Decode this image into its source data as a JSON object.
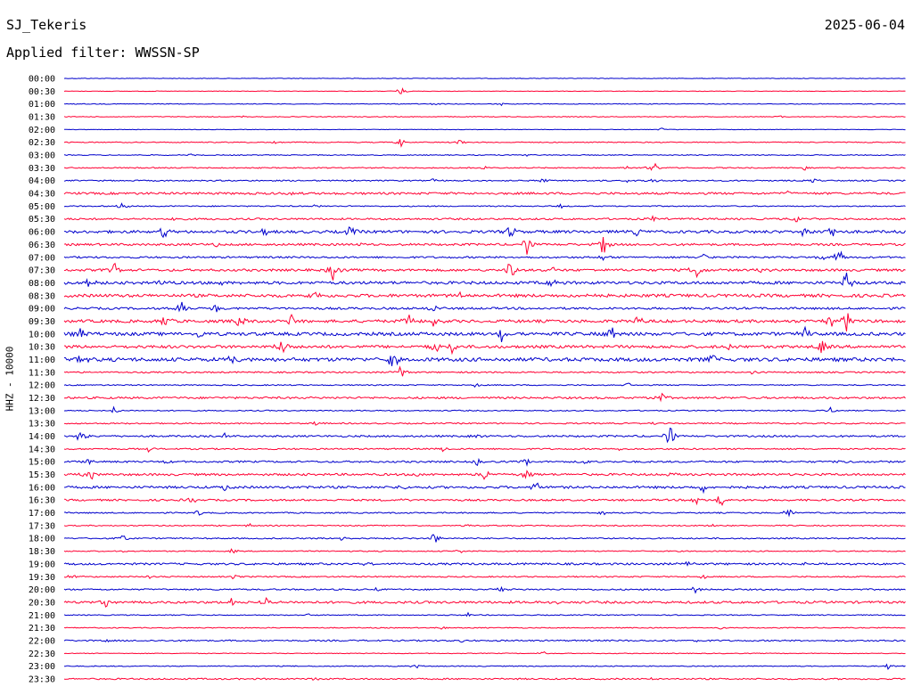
{
  "header": {
    "station": "SJ_Tekeris",
    "date": "2025-06-04",
    "filter_text": "Applied filter: WWSSN-SP"
  },
  "chart_data": {
    "type": "helicorder",
    "title": "SJ_Tekeris",
    "date": "2025-06-04",
    "filter": "Applied filter: WWSSN-SP",
    "ylabel": "HHZ - 10000",
    "line_interval_minutes": 30,
    "colors": [
      "#0000cc",
      "#ff0033"
    ],
    "grid": false,
    "legend": "none",
    "traces": [
      {
        "time": "00:00",
        "noise": 0.3,
        "events": []
      },
      {
        "time": "00:30",
        "noise": 0.3,
        "events": [
          [
            0.4,
            3
          ]
        ]
      },
      {
        "time": "01:00",
        "noise": 0.4,
        "events": [
          [
            0.44,
            1.2
          ],
          [
            0.52,
            1
          ]
        ]
      },
      {
        "time": "01:30",
        "noise": 0.4,
        "events": [
          [
            0.21,
            1
          ],
          [
            0.85,
            1
          ]
        ]
      },
      {
        "time": "02:00",
        "noise": 0.3,
        "events": [
          [
            0.71,
            1.5
          ]
        ]
      },
      {
        "time": "02:30",
        "noise": 0.5,
        "events": [
          [
            0.4,
            4
          ],
          [
            0.47,
            2.5
          ],
          [
            0.25,
            1
          ]
        ]
      },
      {
        "time": "03:00",
        "noise": 0.5,
        "events": [
          [
            0.15,
            1
          ],
          [
            0.55,
            1
          ]
        ]
      },
      {
        "time": "03:30",
        "noise": 0.6,
        "events": [
          [
            0.5,
            1.5
          ],
          [
            0.7,
            6
          ],
          [
            0.67,
            1.5
          ],
          [
            0.88,
            2
          ]
        ]
      },
      {
        "time": "04:00",
        "noise": 0.7,
        "events": [
          [
            0.44,
            2
          ],
          [
            0.57,
            2
          ],
          [
            0.67,
            1.5
          ],
          [
            0.7,
            2
          ],
          [
            0.89,
            1.5
          ]
        ]
      },
      {
        "time": "04:30",
        "noise": 1.2,
        "events": [
          [
            0.27,
            1.5
          ],
          [
            0.86,
            1.5
          ]
        ]
      },
      {
        "time": "05:00",
        "noise": 0.6,
        "events": [
          [
            0.07,
            3
          ],
          [
            0.3,
            1.5
          ],
          [
            0.59,
            1.5
          ]
        ]
      },
      {
        "time": "05:30",
        "noise": 1.0,
        "events": [
          [
            0.13,
            2
          ],
          [
            0.5,
            1.5
          ],
          [
            0.7,
            2.5
          ],
          [
            0.87,
            3
          ]
        ]
      },
      {
        "time": "06:00",
        "noise": 1.5,
        "events": [
          [
            0.12,
            7
          ],
          [
            0.24,
            5
          ],
          [
            0.34,
            6
          ],
          [
            0.53,
            6
          ],
          [
            0.68,
            4
          ],
          [
            0.88,
            5
          ],
          [
            0.91,
            9
          ]
        ]
      },
      {
        "time": "06:30",
        "noise": 1.2,
        "events": [
          [
            0.18,
            2
          ],
          [
            0.35,
            2
          ],
          [
            0.55,
            7
          ],
          [
            0.64,
            9
          ]
        ]
      },
      {
        "time": "07:00",
        "noise": 1.0,
        "events": [
          [
            0.64,
            4
          ],
          [
            0.76,
            3
          ],
          [
            0.9,
            5
          ],
          [
            0.92,
            9
          ]
        ]
      },
      {
        "time": "07:30",
        "noise": 1.3,
        "events": [
          [
            0.06,
            5
          ],
          [
            0.32,
            8
          ],
          [
            0.53,
            8
          ],
          [
            0.58,
            2
          ],
          [
            0.75,
            9
          ],
          [
            0.83,
            2
          ]
        ]
      },
      {
        "time": "08:00",
        "noise": 1.6,
        "events": [
          [
            0.03,
            9
          ],
          [
            0.12,
            4
          ],
          [
            0.19,
            4
          ],
          [
            0.58,
            3
          ],
          [
            0.93,
            9
          ]
        ]
      },
      {
        "time": "08:30",
        "noise": 1.7,
        "events": [
          [
            0.3,
            3
          ],
          [
            0.47,
            2
          ],
          [
            0.62,
            4
          ]
        ]
      },
      {
        "time": "09:00",
        "noise": 1.2,
        "events": [
          [
            0.14,
            9
          ],
          [
            0.18,
            5
          ],
          [
            0.44,
            4
          ]
        ]
      },
      {
        "time": "09:30",
        "noise": 1.6,
        "events": [
          [
            0.12,
            6
          ],
          [
            0.21,
            6
          ],
          [
            0.27,
            5
          ],
          [
            0.41,
            6
          ],
          [
            0.44,
            6
          ],
          [
            0.68,
            6
          ],
          [
            0.91,
            6
          ],
          [
            0.93,
            9
          ]
        ]
      },
      {
        "time": "10:00",
        "noise": 1.8,
        "events": [
          [
            0.02,
            5
          ],
          [
            0.16,
            3
          ],
          [
            0.52,
            7
          ],
          [
            0.65,
            6
          ],
          [
            0.88,
            5
          ]
        ]
      },
      {
        "time": "10:30",
        "noise": 1.6,
        "events": [
          [
            0.26,
            9
          ],
          [
            0.44,
            6
          ],
          [
            0.46,
            7
          ],
          [
            0.79,
            4
          ],
          [
            0.9,
            6
          ]
        ]
      },
      {
        "time": "11:00",
        "noise": 2.0,
        "events": [
          [
            0.02,
            6
          ],
          [
            0.2,
            7
          ],
          [
            0.39,
            9
          ],
          [
            0.77,
            4
          ]
        ]
      },
      {
        "time": "11:30",
        "noise": 0.8,
        "events": [
          [
            0.4,
            6
          ],
          [
            0.82,
            2
          ]
        ]
      },
      {
        "time": "12:00",
        "noise": 0.6,
        "events": [
          [
            0.49,
            2
          ],
          [
            0.67,
            2
          ]
        ]
      },
      {
        "time": "12:30",
        "noise": 1.1,
        "events": [
          [
            0.71,
            5
          ]
        ]
      },
      {
        "time": "13:00",
        "noise": 0.6,
        "events": [
          [
            0.06,
            4
          ],
          [
            0.91,
            3
          ]
        ]
      },
      {
        "time": "13:30",
        "noise": 0.7,
        "events": [
          [
            0.3,
            2
          ],
          [
            0.7,
            1.5
          ]
        ]
      },
      {
        "time": "14:00",
        "noise": 1.0,
        "events": [
          [
            0.02,
            6
          ],
          [
            0.19,
            2
          ],
          [
            0.49,
            2
          ],
          [
            0.72,
            9
          ]
        ]
      },
      {
        "time": "14:30",
        "noise": 0.8,
        "events": [
          [
            0.1,
            2
          ],
          [
            0.45,
            2
          ],
          [
            0.66,
            2
          ]
        ]
      },
      {
        "time": "15:00",
        "noise": 1.0,
        "events": [
          [
            0.03,
            3
          ],
          [
            0.12,
            2
          ],
          [
            0.49,
            3
          ],
          [
            0.55,
            3
          ],
          [
            0.62,
            2
          ],
          [
            0.93,
            2
          ]
        ]
      },
      {
        "time": "15:30",
        "noise": 1.2,
        "events": [
          [
            0.03,
            6
          ],
          [
            0.42,
            3
          ],
          [
            0.5,
            5
          ],
          [
            0.55,
            5
          ],
          [
            0.72,
            2
          ]
        ]
      },
      {
        "time": "16:00",
        "noise": 1.3,
        "events": [
          [
            0.19,
            3
          ],
          [
            0.29,
            3
          ],
          [
            0.4,
            2
          ],
          [
            0.56,
            6
          ],
          [
            0.76,
            4
          ]
        ]
      },
      {
        "time": "16:30",
        "noise": 1.0,
        "events": [
          [
            0.15,
            4
          ],
          [
            0.4,
            2
          ],
          [
            0.75,
            5
          ],
          [
            0.78,
            6
          ]
        ]
      },
      {
        "time": "17:00",
        "noise": 0.7,
        "events": [
          [
            0.16,
            2
          ],
          [
            0.64,
            2
          ],
          [
            0.86,
            6
          ]
        ]
      },
      {
        "time": "17:30",
        "noise": 0.6,
        "events": [
          [
            0.22,
            1.5
          ],
          [
            0.48,
            1.5
          ],
          [
            0.77,
            1.5
          ]
        ]
      },
      {
        "time": "18:00",
        "noise": 0.7,
        "events": [
          [
            0.07,
            3
          ],
          [
            0.33,
            2
          ],
          [
            0.44,
            5
          ],
          [
            0.65,
            1.5
          ]
        ]
      },
      {
        "time": "18:30",
        "noise": 0.6,
        "events": [
          [
            0.07,
            1.5
          ],
          [
            0.2,
            2
          ],
          [
            0.47,
            1.5
          ]
        ]
      },
      {
        "time": "19:00",
        "noise": 1.1,
        "events": [
          [
            0.36,
            2
          ],
          [
            0.74,
            2.5
          ],
          [
            0.88,
            2
          ]
        ]
      },
      {
        "time": "19:30",
        "noise": 0.7,
        "events": [
          [
            0.01,
            2
          ],
          [
            0.1,
            1.5
          ],
          [
            0.2,
            2
          ],
          [
            0.76,
            2
          ]
        ]
      },
      {
        "time": "20:00",
        "noise": 0.8,
        "events": [
          [
            0.37,
            2
          ],
          [
            0.52,
            2
          ],
          [
            0.75,
            3
          ]
        ]
      },
      {
        "time": "20:30",
        "noise": 1.3,
        "events": [
          [
            0.05,
            4
          ],
          [
            0.2,
            4
          ],
          [
            0.24,
            4
          ],
          [
            0.59,
            2
          ]
        ]
      },
      {
        "time": "21:00",
        "noise": 0.5,
        "events": [
          [
            0.29,
            1.5
          ],
          [
            0.48,
            1.5
          ]
        ]
      },
      {
        "time": "21:30",
        "noise": 0.5,
        "events": [
          [
            0.45,
            1.5
          ],
          [
            0.78,
            1.5
          ]
        ]
      },
      {
        "time": "22:00",
        "noise": 0.8,
        "events": [
          [
            0.05,
            1.5
          ],
          [
            0.47,
            1.5
          ],
          [
            0.75,
            1.5
          ]
        ]
      },
      {
        "time": "22:30",
        "noise": 0.4,
        "events": [
          [
            0.57,
            1.5
          ]
        ]
      },
      {
        "time": "23:00",
        "noise": 0.5,
        "events": [
          [
            0.42,
            2
          ],
          [
            0.98,
            3
          ]
        ]
      },
      {
        "time": "23:30",
        "noise": 0.8,
        "events": [
          [
            0.3,
            1.5
          ],
          [
            0.7,
            1.5
          ]
        ]
      }
    ]
  }
}
